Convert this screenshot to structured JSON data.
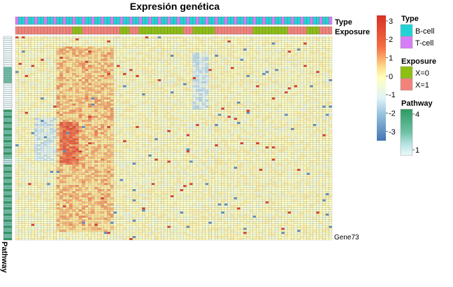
{
  "chart_data": {
    "type": "heatmap",
    "title": "Expresión genética",
    "n_rows": 100,
    "n_cols": 100,
    "row_labels_visible": [
      "Gene73"
    ],
    "annotation_labels": {
      "type": "Type",
      "exposure": "Exposure",
      "pathway": "Pathway"
    },
    "color_scale": {
      "ticks": [
        "3",
        "2",
        "1",
        "0",
        "-1",
        "-2",
        "-3"
      ],
      "range": [
        -3.5,
        3.3
      ],
      "colors": {
        "low": "#4575b4",
        "mid": "#ffffbf",
        "high": "#d73027"
      }
    },
    "legends": {
      "type": {
        "title": "Type",
        "entries": [
          {
            "label": "B-cell",
            "color": "#22d3d6"
          },
          {
            "label": "T-cell",
            "color": "#d77df7"
          }
        ]
      },
      "exposure": {
        "title": "Exposure",
        "entries": [
          {
            "label": "X=0",
            "color": "#8ebf12"
          },
          {
            "label": "X=1",
            "color": "#f2827a"
          }
        ]
      },
      "pathway": {
        "title": "Pathway",
        "ticks": [
          "4",
          "1"
        ],
        "colors": {
          "low": "#eefafb",
          "high": "#2e9a63"
        }
      }
    }
  }
}
